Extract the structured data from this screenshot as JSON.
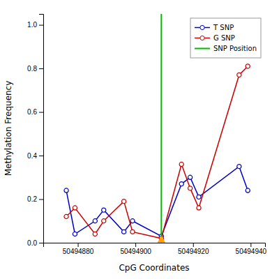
{
  "chart_data": {
    "type": "line",
    "xlabel": "CpG Coordinates",
    "ylabel": "Methylation Frequency",
    "x": [
      50494876,
      50494879,
      50494886,
      50494889,
      50494896,
      50494899,
      50494909,
      50494916,
      50494919,
      50494922,
      50494936,
      50494939
    ],
    "series": [
      {
        "name": "T SNP",
        "color": "#0000cc",
        "marker": "circle",
        "line_style": "solid",
        "values": [
          0.24,
          0.04,
          0.1,
          0.15,
          0.05,
          0.1,
          0.03,
          0.27,
          0.3,
          0.21,
          0.35,
          0.24
        ]
      },
      {
        "name": "G SNP",
        "color": "#cc0000",
        "marker": "circle",
        "line_style": "solid",
        "values": [
          0.12,
          0.16,
          0.04,
          0.1,
          0.19,
          0.05,
          0.02,
          0.36,
          0.25,
          0.16,
          0.77,
          0.81
        ]
      }
    ],
    "vlines": [
      {
        "name": "SNP Position",
        "color": "#00bb00",
        "value": 50494909
      }
    ],
    "markers": [
      {
        "x": 50494909,
        "y": 0.0,
        "color": "#ffa500",
        "marker": "triangle"
      }
    ],
    "xlim": [
      50494868,
      50494945
    ],
    "xticks": [
      50494880,
      50494900,
      50494920,
      50494940
    ],
    "ylim": [
      0.0,
      1.05
    ],
    "yticks": [
      {
        "value": 0.0,
        "label": "0.0"
      },
      0.2,
      0.4,
      0.6,
      0.8,
      {
        "value": 1.0,
        "label": "1.0"
      }
    ],
    "grid": false,
    "legend": "upper right"
  }
}
